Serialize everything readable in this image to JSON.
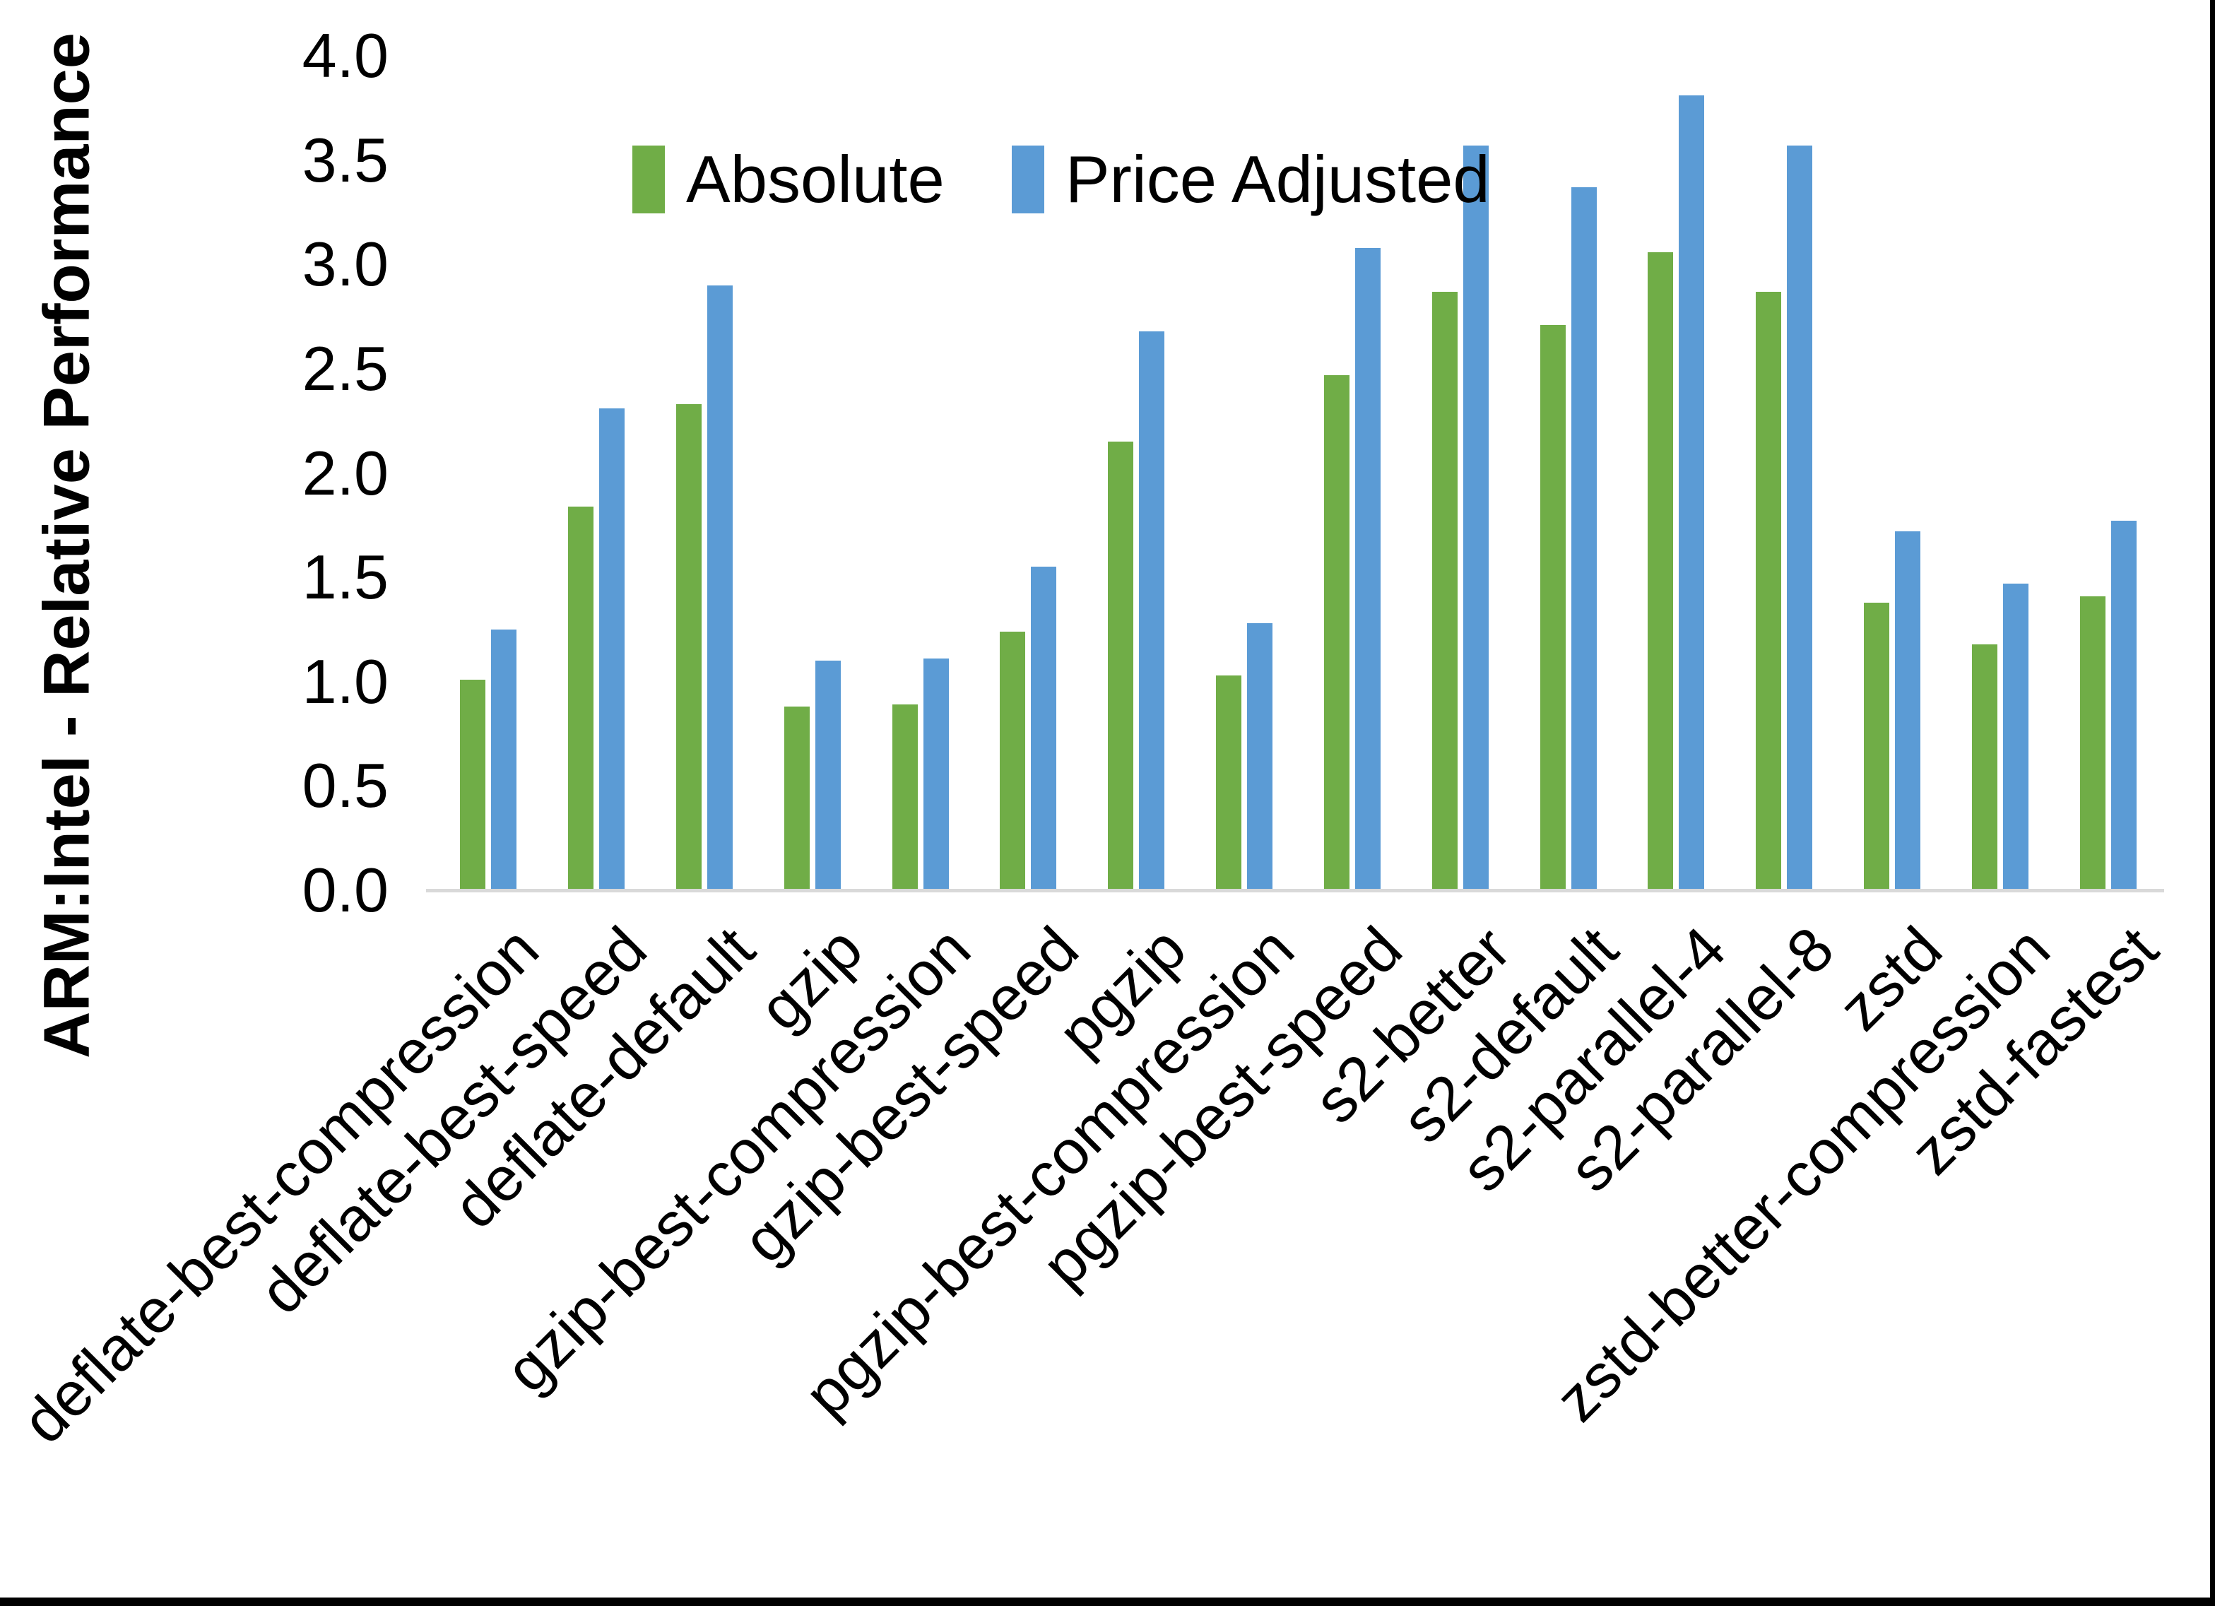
{
  "chart_data": {
    "type": "bar",
    "title": "",
    "xlabel": "",
    "ylabel": "ARM:Intel - Relative Performance",
    "ylim": [
      0,
      4.0
    ],
    "ytick_step": 0.5,
    "yticks": [
      "4.0",
      "3.5",
      "3.0",
      "2.5",
      "2.0",
      "1.5",
      "1.0",
      "0.5",
      "0.0"
    ],
    "grid": false,
    "legend_position": "top-center",
    "categories": [
      "deflate-best-compression",
      "deflate-best-speed",
      "deflate-default",
      "gzip",
      "gzip-best-compression",
      "gzip-best-speed",
      "pgzip",
      "pgzip-best-compression",
      "pgzip-best-speed",
      "s2-better",
      "s2-default",
      "s2-parallel-4",
      "s2-parallel-8",
      "zstd",
      "zstd-better-compression",
      "zstd-fastest"
    ],
    "series": [
      {
        "name": "Absolute",
        "color": "#70AD47",
        "values": [
          1.01,
          1.84,
          2.33,
          0.88,
          0.89,
          1.24,
          2.15,
          1.03,
          2.47,
          2.87,
          2.71,
          3.06,
          2.87,
          1.38,
          1.18,
          1.41
        ]
      },
      {
        "name": "Price Adjusted",
        "color": "#5B9BD5",
        "values": [
          1.25,
          2.31,
          2.9,
          1.1,
          1.11,
          1.55,
          2.68,
          1.28,
          3.08,
          3.57,
          3.37,
          3.81,
          3.57,
          1.72,
          1.47,
          1.77
        ]
      }
    ]
  },
  "colors": {
    "background": "#FFFFFF",
    "axis_line": "#D9D9D9",
    "text": "#000000",
    "frame_border": "#000000"
  }
}
